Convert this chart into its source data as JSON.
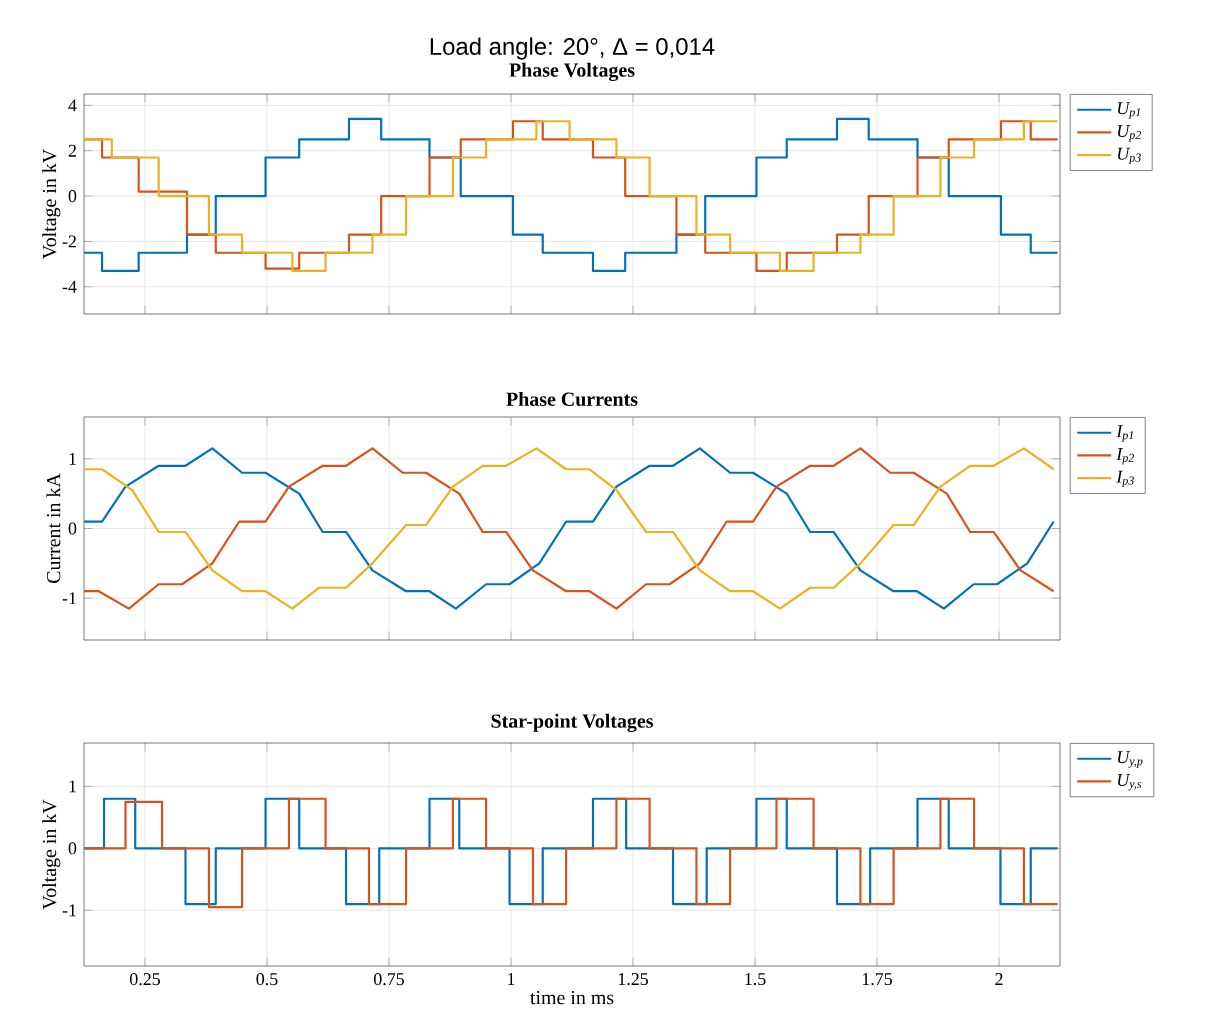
{
  "chart_data": [
    {
      "type": "step",
      "title": "Load angle: 20°, Δ = 0,014",
      "subtitle": "Phase Voltages",
      "ylabel": "Voltage in kV",
      "xlim": [
        0.125,
        2.125
      ],
      "ylim": [
        -5.2,
        4.5
      ],
      "xticks": [
        0.25,
        0.5,
        0.75,
        1,
        1.25,
        1.5,
        1.75,
        2
      ],
      "yticks": [
        -4,
        -2,
        0,
        2,
        4
      ],
      "grid": true,
      "legend": "right",
      "tick_labels": "y",
      "series": [
        {
          "name": "U$_{p1}$",
          "color": "#0072bd",
          "x": [
            0.125,
            0.162,
            0.237,
            0.336,
            0.395,
            0.497,
            0.566,
            0.668,
            0.734,
            0.833,
            0.897,
            1.004,
            1.065,
            1.168,
            1.234,
            1.339,
            1.398,
            1.503,
            1.565,
            1.668,
            1.733,
            1.833,
            1.897,
            2.004,
            2.065,
            2.12
          ],
          "values": [
            -2.5,
            -3.3,
            -2.5,
            -1.7,
            0,
            1.7,
            2.5,
            3.4,
            2.5,
            1.7,
            0,
            -1.7,
            -2.5,
            -3.3,
            -2.5,
            -1.7,
            0,
            1.7,
            2.5,
            3.4,
            2.5,
            1.7,
            0,
            -1.7,
            -2.5,
            -2.5
          ]
        },
        {
          "name": "U$_{p2}$",
          "color": "#d95319",
          "x": [
            0.125,
            0.162,
            0.237,
            0.336,
            0.395,
            0.497,
            0.566,
            0.668,
            0.734,
            0.833,
            0.897,
            1.004,
            1.065,
            1.168,
            1.234,
            1.339,
            1.398,
            1.503,
            1.565,
            1.668,
            1.733,
            1.833,
            1.897,
            2.004,
            2.065,
            2.12
          ],
          "values": [
            2.5,
            1.7,
            0.2,
            -1.7,
            -2.5,
            -3.2,
            -2.5,
            -1.7,
            0,
            1.7,
            2.5,
            3.3,
            2.5,
            1.7,
            0,
            -1.7,
            -2.5,
            -3.3,
            -2.5,
            -1.7,
            0,
            1.7,
            2.5,
            3.3,
            2.5,
            2.5
          ]
        },
        {
          "name": "U$_{p3}$",
          "color": "#edb120",
          "x": [
            0.125,
            0.182,
            0.278,
            0.381,
            0.449,
            0.552,
            0.62,
            0.716,
            0.785,
            0.881,
            0.949,
            1.052,
            1.12,
            1.216,
            1.284,
            1.38,
            1.449,
            1.551,
            1.62,
            1.716,
            1.784,
            1.88,
            1.949,
            2.051,
            2.12
          ],
          "values": [
            2.5,
            1.7,
            0,
            -1.7,
            -2.5,
            -3.3,
            -2.5,
            -1.7,
            0,
            1.7,
            2.5,
            3.3,
            2.5,
            1.7,
            0,
            -1.7,
            -2.5,
            -3.3,
            -2.5,
            -1.7,
            0,
            1.7,
            2.5,
            3.3,
            3.3
          ]
        }
      ]
    },
    {
      "type": "line",
      "title": "Phase Currents",
      "ylabel": "Current in kA",
      "xlim": [
        0.125,
        2.125
      ],
      "ylim": [
        -1.6,
        1.6
      ],
      "xticks": [
        0.25,
        0.5,
        0.75,
        1,
        1.25,
        1.5,
        1.75,
        2
      ],
      "yticks": [
        -1,
        0,
        1
      ],
      "grid": true,
      "legend": "right",
      "tick_labels": "y",
      "series": [
        {
          "name": "I$_{p1}$",
          "color": "#0072bd",
          "x": [
            0.125,
            0.162,
            0.21,
            0.278,
            0.333,
            0.388,
            0.449,
            0.497,
            0.566,
            0.614,
            0.662,
            0.716,
            0.785,
            0.833,
            0.887,
            0.949,
            0.997,
            1.058,
            1.113,
            1.168,
            1.216,
            1.284,
            1.332,
            1.387,
            1.449,
            1.496,
            1.565,
            1.613,
            1.661,
            1.716,
            1.784,
            1.832,
            1.887,
            1.948,
            1.996,
            2.058,
            2.112
          ],
          "values": [
            0.1,
            0.1,
            0.6,
            0.9,
            0.9,
            1.15,
            0.8,
            0.8,
            0.5,
            -0.05,
            -0.05,
            -0.6,
            -0.9,
            -0.9,
            -1.15,
            -0.8,
            -0.8,
            -0.5,
            0.1,
            0.1,
            0.6,
            0.9,
            0.9,
            1.15,
            0.8,
            0.8,
            0.5,
            -0.05,
            -0.05,
            -0.6,
            -0.9,
            -0.9,
            -1.15,
            -0.8,
            -0.8,
            -0.5,
            0.1
          ]
        },
        {
          "name": "I$_{p2}$",
          "color": "#d95319",
          "x": [
            0.125,
            0.155,
            0.217,
            0.278,
            0.326,
            0.388,
            0.443,
            0.497,
            0.545,
            0.614,
            0.662,
            0.716,
            0.778,
            0.826,
            0.894,
            0.942,
            0.99,
            1.045,
            1.113,
            1.161,
            1.216,
            1.277,
            1.325,
            1.387,
            1.442,
            1.496,
            1.544,
            1.613,
            1.661,
            1.716,
            1.777,
            1.825,
            1.893,
            1.941,
            1.989,
            2.044,
            2.112
          ],
          "values": [
            -0.9,
            -0.9,
            -1.15,
            -0.8,
            -0.8,
            -0.5,
            0.1,
            0.1,
            0.6,
            0.9,
            0.9,
            1.15,
            0.8,
            0.8,
            0.5,
            -0.05,
            -0.05,
            -0.6,
            -0.9,
            -0.9,
            -1.15,
            -0.8,
            -0.8,
            -0.5,
            0.1,
            0.1,
            0.6,
            0.9,
            0.9,
            1.15,
            0.8,
            0.8,
            0.5,
            -0.05,
            -0.05,
            -0.6,
            -0.9
          ]
        },
        {
          "name": "I$_{p3}$",
          "color": "#edb120",
          "x": [
            0.125,
            0.162,
            0.224,
            0.278,
            0.333,
            0.388,
            0.449,
            0.497,
            0.552,
            0.607,
            0.662,
            0.716,
            0.785,
            0.826,
            0.881,
            0.942,
            0.99,
            1.052,
            1.113,
            1.161,
            1.216,
            1.277,
            1.332,
            1.387,
            1.449,
            1.496,
            1.551,
            1.613,
            1.661,
            1.716,
            1.784,
            1.825,
            1.88,
            1.941,
            1.989,
            2.051,
            2.112
          ],
          "values": [
            0.85,
            0.85,
            0.55,
            -0.05,
            -0.05,
            -0.6,
            -0.9,
            -0.9,
            -1.15,
            -0.85,
            -0.85,
            -0.5,
            0.05,
            0.05,
            0.6,
            0.9,
            0.9,
            1.15,
            0.85,
            0.85,
            0.55,
            -0.05,
            -0.05,
            -0.6,
            -0.9,
            -0.9,
            -1.15,
            -0.85,
            -0.85,
            -0.5,
            0.05,
            0.05,
            0.6,
            0.9,
            0.9,
            1.15,
            0.85
          ]
        }
      ]
    },
    {
      "type": "step",
      "title": "Star-point Voltages",
      "xlabel": "time in ms",
      "ylabel": "Voltage in kV",
      "xlim": [
        0.125,
        2.125
      ],
      "ylim": [
        -1.9,
        1.7
      ],
      "xticks": [
        0.25,
        0.5,
        0.75,
        1,
        1.25,
        1.5,
        1.75,
        2
      ],
      "yticks": [
        -1,
        0,
        1
      ],
      "grid": true,
      "legend": "right",
      "series": [
        {
          "name": "U$_{y,p}$",
          "color": "#0072bd",
          "x": [
            0.125,
            0.166,
            0.23,
            0.333,
            0.395,
            0.497,
            0.566,
            0.662,
            0.73,
            0.833,
            0.894,
            0.997,
            1.065,
            1.168,
            1.236,
            1.332,
            1.401,
            1.503,
            1.565,
            1.668,
            1.736,
            1.833,
            1.897,
            2.003,
            2.065,
            2.12
          ],
          "values": [
            0,
            0.8,
            0,
            -0.9,
            0,
            0.8,
            0,
            -0.9,
            0,
            0.8,
            0,
            -0.9,
            0,
            0.8,
            0,
            -0.9,
            0,
            0.8,
            0,
            -0.9,
            0,
            0.8,
            0,
            -0.9,
            0,
            0
          ]
        },
        {
          "name": "U$_{y,s}$",
          "color": "#d95319",
          "x": [
            0.125,
            0.21,
            0.285,
            0.381,
            0.449,
            0.545,
            0.62,
            0.709,
            0.785,
            0.881,
            0.949,
            1.045,
            1.113,
            1.216,
            1.284,
            1.38,
            1.449,
            1.544,
            1.62,
            1.716,
            1.784,
            1.88,
            1.949,
            2.051,
            2.12
          ],
          "values": [
            0,
            0.75,
            0,
            -0.95,
            0,
            0.8,
            0,
            -0.9,
            0,
            0.8,
            0,
            -0.9,
            0,
            0.8,
            0,
            -0.9,
            0,
            0.8,
            0,
            -0.9,
            0,
            0.8,
            0,
            -0.9,
            -0.9
          ]
        }
      ]
    }
  ]
}
